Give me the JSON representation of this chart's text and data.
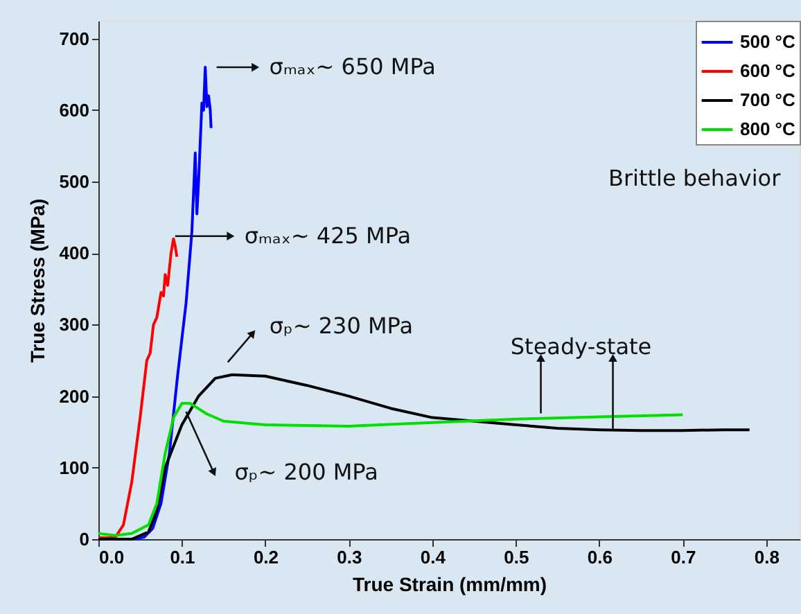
{
  "chart_data": {
    "type": "line",
    "xlabel": "True Strain (mm/mm)",
    "ylabel": "True Stress (MPa)",
    "xlim": [
      0,
      0.84
    ],
    "ylim": [
      0,
      725
    ],
    "xticks": [
      {
        "value": 0,
        "label": "0.0"
      },
      {
        "value": 0.1,
        "label": "0.1"
      },
      {
        "value": 0.2,
        "label": "0.2"
      },
      {
        "value": 0.3,
        "label": "0.3"
      },
      {
        "value": 0.4,
        "label": "0.4"
      },
      {
        "value": 0.5,
        "label": "0.5"
      },
      {
        "value": 0.6,
        "label": "0.6"
      },
      {
        "value": 0.7,
        "label": "0.7"
      },
      {
        "value": 0.8,
        "label": "0.8"
      }
    ],
    "yticks": [
      0,
      100,
      200,
      300,
      400,
      500,
      600,
      700
    ],
    "grid": false,
    "legend": "top right",
    "line_style": "solid",
    "marker": "none",
    "series": [
      {
        "name": "500 °C",
        "color": "#0000ff",
        "x": [
          0,
          0.04,
          0.055,
          0.065,
          0.075,
          0.085,
          0.095,
          0.105,
          0.112,
          0.116,
          0.118,
          0.12,
          0.124,
          0.126,
          0.128,
          0.13,
          0.132,
          0.134,
          0.135
        ],
        "values": [
          0,
          0,
          3,
          15,
          50,
          120,
          230,
          330,
          430,
          540,
          455,
          500,
          610,
          600,
          660,
          605,
          620,
          600,
          575
        ]
      },
      {
        "name": "600 °C",
        "color": "#ff0000",
        "x": [
          0,
          0.02,
          0.03,
          0.04,
          0.05,
          0.058,
          0.062,
          0.066,
          0.07,
          0.075,
          0.078,
          0.08,
          0.083,
          0.087,
          0.09,
          0.092,
          0.094
        ],
        "values": [
          2,
          2,
          20,
          80,
          170,
          250,
          260,
          300,
          310,
          345,
          340,
          370,
          355,
          400,
          420,
          410,
          395
        ]
      },
      {
        "name": "700 °C",
        "color": "#000000",
        "x": [
          0,
          0.04,
          0.06,
          0.07,
          0.08,
          0.1,
          0.12,
          0.14,
          0.16,
          0.2,
          0.25,
          0.3,
          0.35,
          0.4,
          0.45,
          0.5,
          0.55,
          0.6,
          0.65,
          0.7,
          0.75,
          0.78
        ],
        "values": [
          0,
          0,
          10,
          40,
          100,
          160,
          200,
          225,
          230,
          228,
          215,
          200,
          183,
          170,
          165,
          160,
          155,
          153,
          152,
          152,
          153,
          153
        ]
      },
      {
        "name": "800 °C",
        "color": "#00e000",
        "x": [
          0,
          0.02,
          0.04,
          0.06,
          0.07,
          0.08,
          0.09,
          0.1,
          0.11,
          0.13,
          0.15,
          0.2,
          0.3,
          0.4,
          0.5,
          0.6,
          0.7
        ],
        "values": [
          8,
          5,
          8,
          20,
          50,
          120,
          170,
          190,
          190,
          175,
          165,
          160,
          158,
          163,
          168,
          171,
          174
        ]
      }
    ],
    "annotations": [
      {
        "text": "σₘₐₓ~ 650 MPa",
        "x": 0.13,
        "y": 660
      },
      {
        "text": "σₘₐₓ~ 425 MPa",
        "x": 0.092,
        "y": 420
      },
      {
        "text": "σₚ~ 230 MPa",
        "x": 0.16,
        "y": 230
      },
      {
        "text": "σₚ~ 200 MPa",
        "x": 0.105,
        "y": 190
      },
      {
        "text": "Steady-state",
        "x": 0.53,
        "y": 172
      },
      "Brittle behavior"
    ]
  }
}
